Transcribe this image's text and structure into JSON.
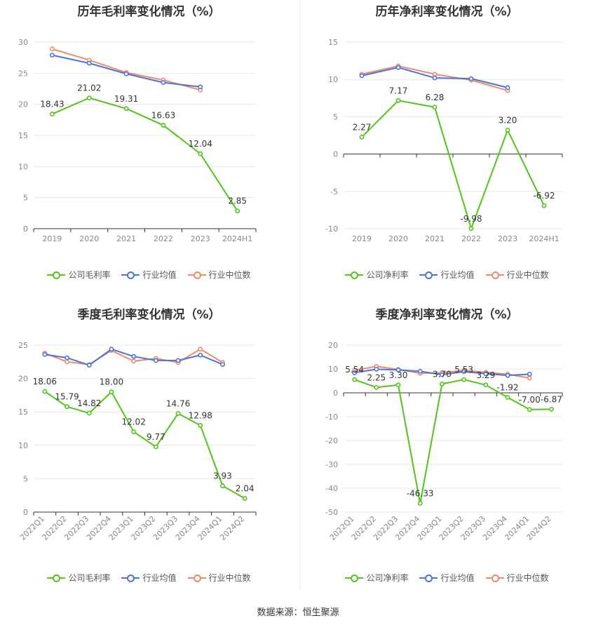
{
  "colors": {
    "company": "#52c41a",
    "avg": "#4a74d8",
    "median": "#f08a6c"
  },
  "source": "数据来源：恒生聚源",
  "legend": {
    "company_gross": "公司毛利率",
    "company_net": "公司净利率",
    "avg": "行业均值",
    "median": "行业中位数"
  },
  "chart_data": [
    {
      "type": "line",
      "title": "历年毛利率变化情况（%）",
      "categories": [
        "2019",
        "2020",
        "2021",
        "2022",
        "2023",
        "2024H1"
      ],
      "ylim": [
        0,
        30
      ],
      "yticks": [
        0,
        5,
        10,
        15,
        20,
        25,
        30
      ],
      "series": [
        {
          "name": "公司毛利率",
          "values": [
            18.43,
            21.02,
            19.31,
            16.63,
            12.04,
            2.85
          ],
          "labels": [
            "18.43",
            "21.02",
            "19.31",
            "16.63",
            "12.04",
            "2.85"
          ]
        },
        {
          "name": "行业均值",
          "values": [
            27.9,
            26.6,
            24.9,
            23.5,
            22.8,
            null
          ]
        },
        {
          "name": "行业中位数",
          "values": [
            28.9,
            27.1,
            25.1,
            23.9,
            22.3,
            null
          ]
        }
      ],
      "legend_position": "bottom",
      "grid": true
    },
    {
      "type": "line",
      "title": "历年净利率变化情况（%）",
      "categories": [
        "2019",
        "2020",
        "2021",
        "2022",
        "2023",
        "2024H1"
      ],
      "ylim": [
        -10,
        15
      ],
      "yticks": [
        -10,
        -5,
        0,
        5,
        10,
        15
      ],
      "series": [
        {
          "name": "公司净利率",
          "values": [
            2.27,
            7.17,
            6.28,
            -9.98,
            3.2,
            -6.92
          ],
          "labels": [
            "2.27",
            "7.17",
            "6.28",
            "-9.98",
            "3.20",
            "-6.92"
          ]
        },
        {
          "name": "行业均值",
          "values": [
            10.5,
            11.6,
            10.2,
            10.1,
            8.9,
            null
          ]
        },
        {
          "name": "行业中位数",
          "values": [
            10.7,
            11.8,
            10.7,
            9.9,
            8.5,
            null
          ]
        }
      ],
      "legend_position": "bottom",
      "grid": true
    },
    {
      "type": "line",
      "title": "季度毛利率变化情况（%）",
      "categories": [
        "2022Q1",
        "2022Q2",
        "2022Q3",
        "2022Q4",
        "2023Q1",
        "2023Q2",
        "2023Q3",
        "2023Q4",
        "2024Q1",
        "2024Q2"
      ],
      "ylim": [
        0,
        25
      ],
      "yticks": [
        0,
        5,
        10,
        15,
        20,
        25
      ],
      "series": [
        {
          "name": "公司毛利率",
          "values": [
            18.06,
            15.79,
            14.82,
            18.0,
            12.02,
            9.77,
            14.76,
            12.98,
            3.93,
            2.04
          ],
          "labels": [
            "18.06",
            "15.79",
            "14.82",
            "18.00",
            "12.02",
            "9.77",
            "14.76",
            "12.98",
            "3.93",
            "2.04"
          ]
        },
        {
          "name": "行业均值",
          "values": [
            23.6,
            23.1,
            22.0,
            24.4,
            23.3,
            22.7,
            22.7,
            23.5,
            22.1,
            null
          ]
        },
        {
          "name": "行业中位数",
          "values": [
            23.8,
            22.5,
            22.1,
            24.2,
            22.6,
            23.0,
            22.4,
            24.4,
            22.4,
            null
          ]
        }
      ],
      "legend_position": "bottom",
      "grid": true
    },
    {
      "type": "line",
      "title": "季度净利率变化情况（%）",
      "categories": [
        "2022Q1",
        "2022Q2",
        "2022Q3",
        "2022Q4",
        "2023Q1",
        "2023Q2",
        "2023Q3",
        "2023Q4",
        "2024Q1",
        "2024Q2"
      ],
      "ylim": [
        -50,
        20
      ],
      "yticks": [
        -50,
        -40,
        -30,
        -20,
        -10,
        0,
        10,
        20
      ],
      "series": [
        {
          "name": "公司净利率",
          "values": [
            5.54,
            2.25,
            3.3,
            -46.33,
            3.7,
            5.53,
            3.29,
            -1.92,
            -7.0,
            -6.87
          ],
          "labels": [
            "5.54",
            "2.25",
            "3.30",
            "-46.33",
            "3.70",
            "5.53",
            "3.29",
            "-1.92",
            "-7.00",
            "-6.87"
          ]
        },
        {
          "name": "行业均值",
          "values": [
            8.4,
            9.9,
            9.6,
            9.0,
            7.6,
            8.9,
            8.0,
            7.3,
            7.8,
            null
          ]
        },
        {
          "name": "行业中位数",
          "values": [
            9.4,
            11.1,
            9.8,
            8.2,
            8.4,
            9.4,
            8.6,
            7.8,
            6.2,
            null
          ]
        }
      ],
      "legend_position": "bottom",
      "grid": true
    }
  ]
}
